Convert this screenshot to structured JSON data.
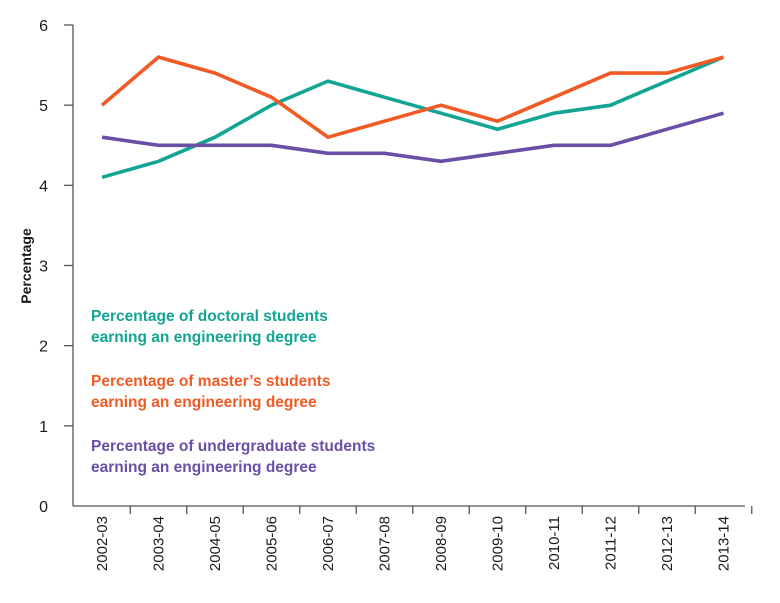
{
  "chart_data": {
    "type": "line",
    "title": "",
    "xlabel": "",
    "ylabel": "Percentage",
    "ylim": [
      0,
      6
    ],
    "yticks": [
      "0",
      "1",
      "2",
      "3",
      "4",
      "5",
      "6"
    ],
    "grid": false,
    "categories": [
      "2002-03",
      "2003-04",
      "2004-05",
      "2005-06",
      "2006-07",
      "2007-08",
      "2008-09",
      "2009-10",
      "2010-11",
      "2011-12",
      "2012-13",
      "2013-14"
    ],
    "series": [
      {
        "name": "Percentage of doctoral students earning an engineering degree",
        "legend_lines": [
          "Percentage of doctoral students",
          "earning an engineering degree"
        ],
        "color": "#12A594",
        "values": [
          4.1,
          4.3,
          4.6,
          5.0,
          5.3,
          5.1,
          4.9,
          4.7,
          4.9,
          5.0,
          5.3,
          5.6
        ]
      },
      {
        "name": "Percentage of master's students earning an engineering degree",
        "legend_lines": [
          "Percentage of master’s students",
          "earning an engineering degree"
        ],
        "color": "#F15A24",
        "values": [
          5.0,
          5.6,
          5.4,
          5.1,
          4.6,
          4.8,
          5.0,
          4.8,
          5.1,
          5.4,
          5.4,
          5.6
        ]
      },
      {
        "name": "Percentage of undergraduate students earning an engineering degree",
        "legend_lines": [
          "Percentage of undergraduate students",
          "earning an engineering degree"
        ],
        "color": "#6A4FA7",
        "values": [
          4.6,
          4.5,
          4.5,
          4.5,
          4.4,
          4.4,
          4.3,
          4.4,
          4.5,
          4.5,
          4.7,
          4.9
        ]
      }
    ],
    "legend_placement": "left-middle inside plot"
  }
}
